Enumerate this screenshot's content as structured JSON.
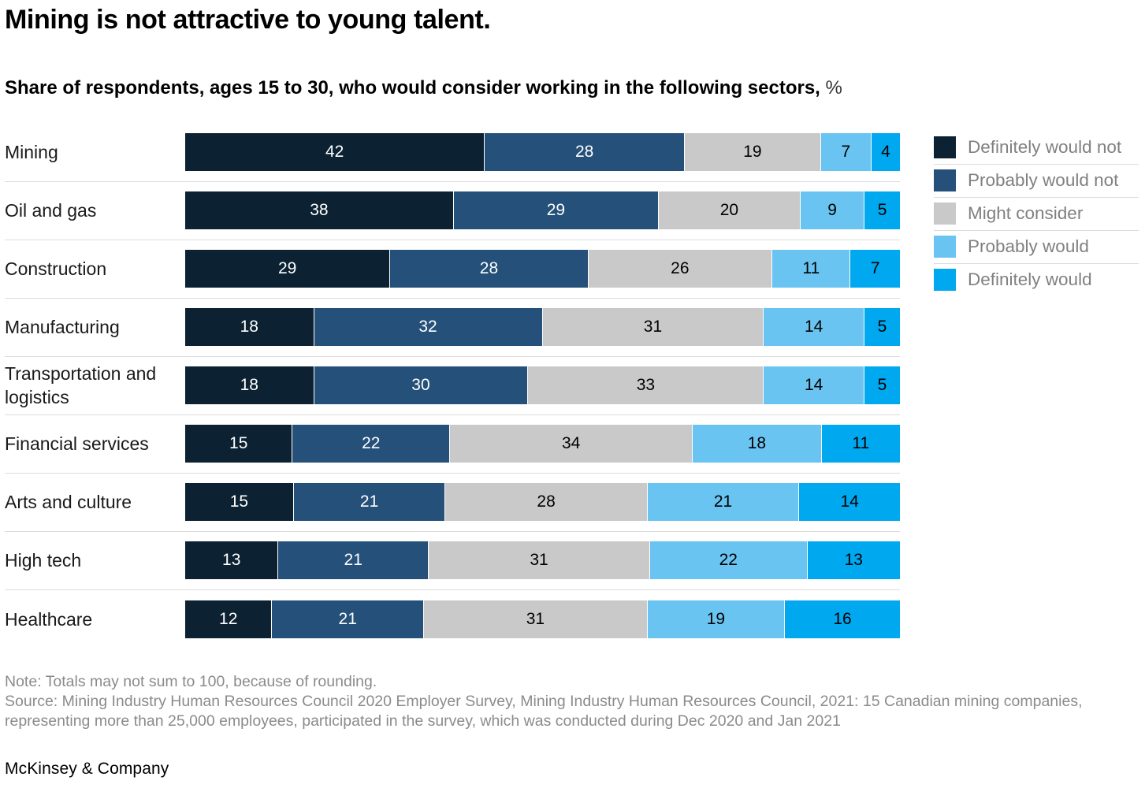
{
  "title": "Mining is not attractive to young talent.",
  "subtitle": {
    "text": "Share of respondents, ages 15 to 30, who would consider working in the following sectors,",
    "unit": "%"
  },
  "colors": {
    "definitely_would_not": "#0c2233",
    "probably_would_not": "#24507a",
    "might_consider": "#c9c9c9",
    "probably_would": "#69c4f1",
    "definitely_would": "#00a8f0",
    "separator": "#dcdcdc",
    "legend_text": "#808080",
    "note_text": "#8b8b8b"
  },
  "chart_data": {
    "type": "bar",
    "orientation": "horizontal-stacked",
    "value_unit": "%",
    "xlim": [
      0,
      100
    ],
    "grid": false,
    "legend_position": "right",
    "categories": [
      "Mining",
      "Oil and gas",
      "Construction",
      "Manufacturing",
      "Transportation and logistics",
      "Financial services",
      "Arts and culture",
      "High tech",
      "Healthcare"
    ],
    "series": [
      {
        "name": "Definitely would not",
        "color": "#0c2233",
        "label_color": "#ffffff",
        "values": [
          42,
          38,
          29,
          18,
          18,
          15,
          15,
          13,
          12
        ]
      },
      {
        "name": "Probably would not",
        "color": "#24507a",
        "label_color": "#ffffff",
        "values": [
          28,
          29,
          28,
          32,
          30,
          22,
          21,
          21,
          21
        ]
      },
      {
        "name": "Might consider",
        "color": "#c9c9c9",
        "label_color": "#000000",
        "values": [
          19,
          20,
          26,
          31,
          33,
          34,
          28,
          31,
          31
        ]
      },
      {
        "name": "Probably would",
        "color": "#69c4f1",
        "label_color": "#000000",
        "values": [
          7,
          9,
          11,
          14,
          14,
          18,
          21,
          22,
          19
        ]
      },
      {
        "name": "Definitely would",
        "color": "#00a8f0",
        "label_color": "#000000",
        "values": [
          4,
          5,
          7,
          5,
          5,
          11,
          14,
          13,
          16
        ]
      }
    ]
  },
  "legend": [
    {
      "label": "Definitely would not",
      "color": "#0c2233"
    },
    {
      "label": "Probably would not",
      "color": "#24507a"
    },
    {
      "label": "Might consider",
      "color": "#c9c9c9"
    },
    {
      "label": "Probably would",
      "color": "#69c4f1"
    },
    {
      "label": "Definitely would",
      "color": "#00a8f0"
    }
  ],
  "note": "Note: Totals may not sum to 100, because of rounding.",
  "source": "Source: Mining Industry Human Resources Council 2020 Employer Survey, Mining Industry Human Resources Council, 2021: 15 Canadian mining companies, representing more than 25,000 employees, participated in the survey, which was conducted during Dec 2020 and Jan 2021",
  "footer": "McKinsey & Company"
}
